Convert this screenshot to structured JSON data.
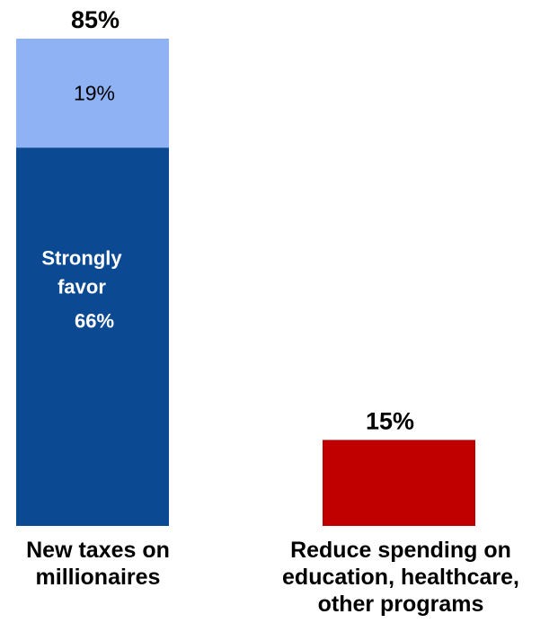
{
  "chart_data": {
    "type": "bar",
    "stacked": true,
    "categories": [
      {
        "label_lines": [
          "New taxes on",
          "millionaires"
        ],
        "total_label": "85%",
        "total": 85,
        "segments": [
          {
            "value": 66,
            "label_lines": [
              "Strongly",
              "favor"
            ],
            "value_label": "66%",
            "color": "#0b4a93"
          },
          {
            "value": 19,
            "label_lines": [],
            "value_label": "19%",
            "color": "#8fb2f4"
          }
        ]
      },
      {
        "label_lines": [
          "Reduce spending on",
          "education, healthcare,",
          "other programs"
        ],
        "total_label": "15%",
        "total": 15,
        "segments": [
          {
            "value": 15,
            "label_lines": [],
            "value_label": "",
            "color": "#c00000"
          }
        ]
      }
    ],
    "ylim": [
      0,
      85
    ],
    "grid": false,
    "legend": "none"
  }
}
